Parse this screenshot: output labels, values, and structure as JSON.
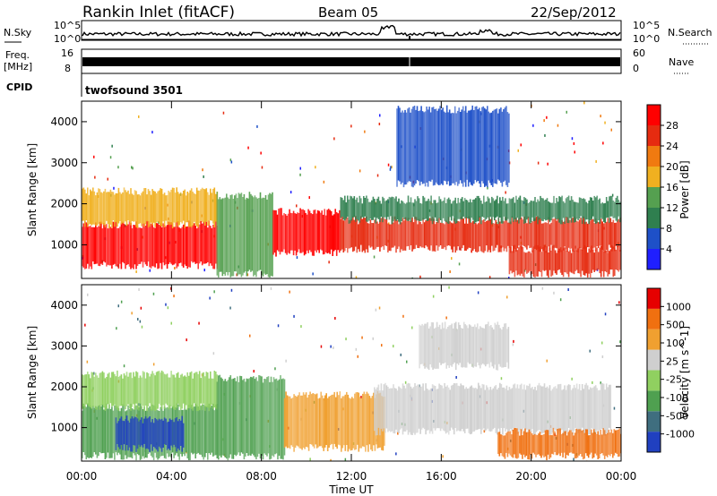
{
  "header": {
    "station": "Rankin Inlet (fitACF)",
    "beam": "Beam 05",
    "date": "22/Sep/2012"
  },
  "noise_panel": {
    "left_label": "N.Sky",
    "right_label": "N.Search",
    "left_ticks": [
      "10^5",
      "10^0"
    ],
    "right_ticks": [
      "10^5",
      "10^0"
    ]
  },
  "freq_panel": {
    "left_label_1": "Freq.",
    "left_label_2": "[MHz]",
    "right_label": "Nave",
    "left_ticks": [
      "16",
      "8"
    ],
    "right_ticks": [
      "60",
      "0"
    ]
  },
  "cpid_panel": {
    "label": "CPID",
    "program": "twofsound 3501"
  },
  "chart_data": [
    {
      "type": "heatmap",
      "title": "",
      "ylabel": "Slant Range [km]",
      "xlabel": "",
      "ylim": [
        180,
        4500
      ],
      "y_ticks": [
        1000,
        2000,
        3000,
        4000
      ],
      "colorbar_label": "Power [dB]",
      "colorbar_ticks": [
        "4",
        "8",
        "12",
        "16",
        "20",
        "24",
        "28"
      ],
      "colorbar_colors": [
        "#1f1fff",
        "#1e50c8",
        "#2f7f4f",
        "#55a050",
        "#f0b020",
        "#f07a10",
        "#e62b10",
        "#ff0000"
      ],
      "regions": [
        {
          "t0": 0.0,
          "t1": 6.0,
          "r0": 500,
          "r1": 1500,
          "level": 28
        },
        {
          "t0": 0.0,
          "t1": 6.0,
          "r0": 1500,
          "r1": 2300,
          "level": 16
        },
        {
          "t0": 6.0,
          "t1": 8.5,
          "r0": 300,
          "r1": 2200,
          "level": 12
        },
        {
          "t0": 8.5,
          "t1": 11.5,
          "r0": 800,
          "r1": 1800,
          "level": 28
        },
        {
          "t0": 11.5,
          "t1": 24.0,
          "r0": 900,
          "r1": 1600,
          "level": 24
        },
        {
          "t0": 11.5,
          "t1": 24.0,
          "r0": 1600,
          "r1": 2100,
          "level": 8
        },
        {
          "t0": 14.0,
          "t1": 19.0,
          "r0": 2500,
          "r1": 4300,
          "level": 4
        },
        {
          "t0": 19.0,
          "t1": 24.0,
          "r0": 300,
          "r1": 900,
          "level": 24
        }
      ]
    },
    {
      "type": "heatmap",
      "title": "",
      "ylabel": "Slant Range [km]",
      "xlabel": "Time UT",
      "ylim": [
        180,
        4500
      ],
      "y_ticks": [
        1000,
        2000,
        3000,
        4000
      ],
      "x_ticks": [
        "00:00",
        "04:00",
        "08:00",
        "12:00",
        "16:00",
        "20:00",
        "00:00"
      ],
      "colorbar_label": "Velocity [m s^-1]",
      "colorbar_ticks": [
        "1000",
        "500",
        "100",
        "25",
        "-25",
        "-100",
        "-500",
        "-1000"
      ],
      "colorbar_colors": [
        "#2040c0",
        "#3f6e7f",
        "#4fa050",
        "#90d060",
        "#cfcfcf",
        "#f0a030",
        "#f07010",
        "#e60000"
      ],
      "regions": [
        {
          "t0": 0.0,
          "t1": 6.0,
          "r0": 300,
          "r1": 1500,
          "level": 100
        },
        {
          "t0": 1.5,
          "t1": 4.5,
          "r0": 500,
          "r1": 1200,
          "level": 1000
        },
        {
          "t0": 0.0,
          "t1": 6.0,
          "r0": 1500,
          "r1": 2300,
          "level": 25
        },
        {
          "t0": 6.0,
          "t1": 9.0,
          "r0": 300,
          "r1": 2200,
          "level": 100
        },
        {
          "t0": 9.0,
          "t1": 13.5,
          "r0": 500,
          "r1": 1800,
          "level": -100
        },
        {
          "t0": 13.0,
          "t1": 23.5,
          "r0": 900,
          "r1": 2000,
          "level": -25
        },
        {
          "t0": 18.5,
          "t1": 24.0,
          "r0": 300,
          "r1": 900,
          "level": -500
        },
        {
          "t0": 15.0,
          "t1": 19.0,
          "r0": 2500,
          "r1": 3500,
          "level": -25
        }
      ]
    }
  ],
  "x_axis_label": "Time UT"
}
